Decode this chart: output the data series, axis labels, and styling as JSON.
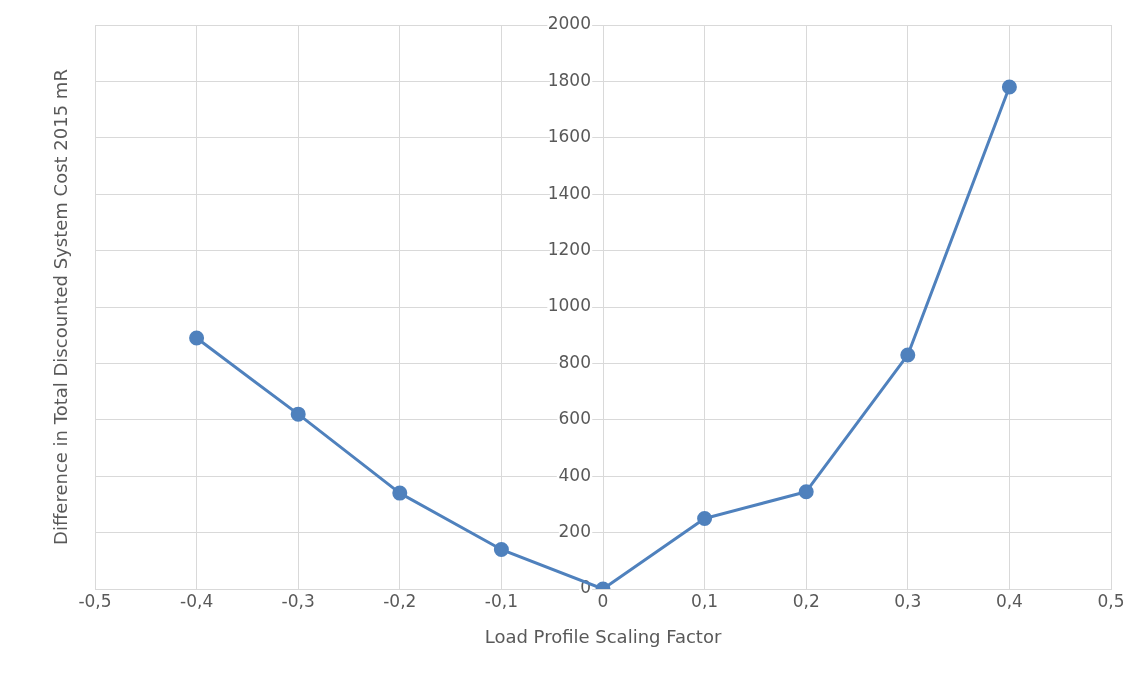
{
  "chart_data": {
    "type": "line",
    "xlabel": "Load Profile Scaling Factor",
    "ylabel": "Difference in Total Discounted System Cost 2015 mR",
    "x": [
      -0.4,
      -0.3,
      -0.2,
      -0.1,
      0,
      0.1,
      0.2,
      0.3,
      0.4
    ],
    "series": [
      {
        "color": "#4f81bd",
        "values": [
          890,
          620,
          340,
          140,
          0,
          250,
          345,
          830,
          1780
        ]
      }
    ],
    "xlim": [
      -0.5,
      0.5
    ],
    "xticks": [
      {
        "value": -0.5,
        "label": "-0,5"
      },
      {
        "value": -0.4,
        "label": "-0,4"
      },
      {
        "value": -0.3,
        "label": "-0,3"
      },
      {
        "value": -0.2,
        "label": "-0,2"
      },
      {
        "value": -0.1,
        "label": "-0,1"
      },
      0,
      {
        "value": 0.1,
        "label": "0,1"
      },
      {
        "value": 0.2,
        "label": "0,2"
      },
      {
        "value": 0.3,
        "label": "0,3"
      },
      {
        "value": 0.4,
        "label": "0,4"
      },
      {
        "value": 0.5,
        "label": "0,5"
      }
    ],
    "ylim": [
      0,
      2000
    ],
    "yticks": [
      0,
      200,
      400,
      600,
      800,
      1000,
      1200,
      1400,
      1600,
      1800,
      2000
    ],
    "grid": true,
    "legend": false,
    "marker": "circle",
    "line_style": "solid"
  }
}
